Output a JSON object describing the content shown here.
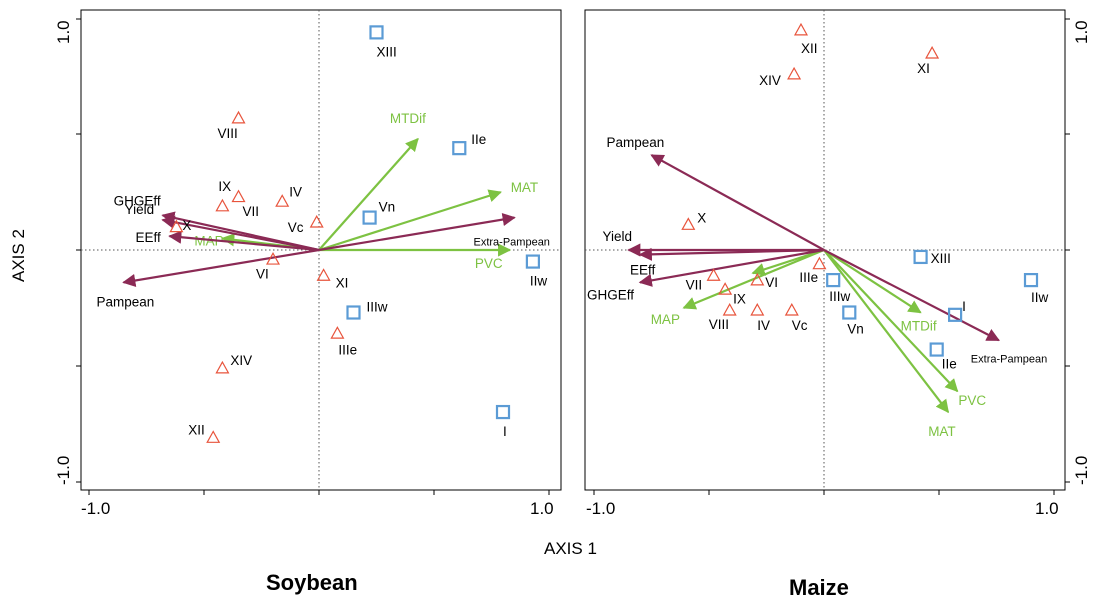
{
  "colors": {
    "env_arrow": "#7dc242",
    "prod_arrow": "#8b2a55",
    "triangle": "#e8543c",
    "square": "#5b9bd5"
  },
  "shared_axes": {
    "xlabel": "AXIS 1",
    "ylabel": "AXIS 2",
    "x_ticks": [
      "-1.0",
      "1.0"
    ],
    "y_ticks": [
      "1.0",
      "-1.0"
    ]
  },
  "chart_data": [
    {
      "type": "scatter",
      "title": "Soybean",
      "xlabel": "AXIS 1",
      "ylabel": "AXIS 2",
      "xlim": [
        -1.0,
        1.0
      ],
      "ylim": [
        -1.0,
        1.0
      ],
      "grid": false,
      "triangles": [
        {
          "label": "VIII",
          "x": -0.35,
          "y": 0.57
        },
        {
          "label": "IX",
          "x": -0.42,
          "y": 0.19
        },
        {
          "label": "VII",
          "x": -0.35,
          "y": 0.23
        },
        {
          "label": "IV",
          "x": -0.16,
          "y": 0.21
        },
        {
          "label": "Vc",
          "x": -0.01,
          "y": 0.12
        },
        {
          "label": "X",
          "x": -0.62,
          "y": 0.1
        },
        {
          "label": "VI",
          "x": -0.2,
          "y": -0.04
        },
        {
          "label": "XI",
          "x": 0.02,
          "y": -0.11
        },
        {
          "label": "IIIe",
          "x": 0.08,
          "y": -0.36
        },
        {
          "label": "XIV",
          "x": -0.42,
          "y": -0.51
        },
        {
          "label": "XII",
          "x": -0.46,
          "y": -0.81
        }
      ],
      "squares": [
        {
          "label": "XIII",
          "x": 0.25,
          "y": 0.94
        },
        {
          "label": "IIe",
          "x": 0.61,
          "y": 0.44
        },
        {
          "label": "Vn",
          "x": 0.22,
          "y": 0.14
        },
        {
          "label": "IIw",
          "x": 0.93,
          "y": -0.05
        },
        {
          "label": "IIIw",
          "x": 0.15,
          "y": -0.27
        },
        {
          "label": "I",
          "x": 0.8,
          "y": -0.7
        }
      ],
      "env_vectors": [
        {
          "label": "MTDif",
          "x": 0.43,
          "y": 0.48
        },
        {
          "label": "MAT",
          "x": 0.79,
          "y": 0.25
        },
        {
          "label": "PVC",
          "x": 0.83,
          "y": 0.0
        },
        {
          "label": "MAP",
          "x": -0.42,
          "y": 0.05
        }
      ],
      "prod_vectors": [
        {
          "label": "GHGEff",
          "x": -0.68,
          "y": 0.15
        },
        {
          "label": "Yield",
          "x": -0.68,
          "y": 0.13
        },
        {
          "label": "EEff",
          "x": -0.65,
          "y": 0.06
        },
        {
          "label": "Pampean",
          "x": -0.85,
          "y": -0.14
        },
        {
          "label": "Extra-Pampean",
          "x": 0.85,
          "y": 0.14
        }
      ]
    },
    {
      "type": "scatter",
      "title": "Maize",
      "xlabel": "AXIS 1",
      "ylabel": "AXIS 2",
      "xlim": [
        -1.0,
        1.0
      ],
      "ylim": [
        -1.0,
        1.0
      ],
      "grid": false,
      "triangles": [
        {
          "label": "XII",
          "x": -0.1,
          "y": 0.95
        },
        {
          "label": "XI",
          "x": 0.47,
          "y": 0.85
        },
        {
          "label": "XIV",
          "x": -0.13,
          "y": 0.76
        },
        {
          "label": "X",
          "x": -0.59,
          "y": 0.11
        },
        {
          "label": "IIIe",
          "x": -0.02,
          "y": -0.06
        },
        {
          "label": "VII",
          "x": -0.48,
          "y": -0.11
        },
        {
          "label": "VI",
          "x": -0.29,
          "y": -0.13
        },
        {
          "label": "IX",
          "x": -0.43,
          "y": -0.17
        },
        {
          "label": "VIII",
          "x": -0.41,
          "y": -0.26
        },
        {
          "label": "IV",
          "x": -0.29,
          "y": -0.26
        },
        {
          "label": "Vc",
          "x": -0.14,
          "y": -0.26
        }
      ],
      "squares": [
        {
          "label": "XIII",
          "x": 0.42,
          "y": -0.03
        },
        {
          "label": "IIIw",
          "x": 0.04,
          "y": -0.13
        },
        {
          "label": "Vn",
          "x": 0.11,
          "y": -0.27
        },
        {
          "label": "I",
          "x": 0.57,
          "y": -0.28
        },
        {
          "label": "IIe",
          "x": 0.49,
          "y": -0.43
        },
        {
          "label": "IIw",
          "x": 0.9,
          "y": -0.13
        }
      ],
      "env_vectors": [
        {
          "label": "MTDif",
          "x": 0.42,
          "y": -0.27
        },
        {
          "label": "PVC",
          "x": 0.58,
          "y": -0.61
        },
        {
          "label": "MAT",
          "x": 0.54,
          "y": -0.7
        },
        {
          "label": "MAP",
          "x": -0.61,
          "y": -0.25
        },
        {
          "label": "VI",
          "x": -0.31,
          "y": -0.1
        }
      ],
      "prod_vectors": [
        {
          "label": "Pampean",
          "x": -0.75,
          "y": 0.41
        },
        {
          "label": "Yield",
          "x": -0.85,
          "y": 0.0
        },
        {
          "label": "EEff",
          "x": -0.8,
          "y": -0.02
        },
        {
          "label": "GHGEff",
          "x": -0.8,
          "y": -0.14
        },
        {
          "label": "Extra-Pampean",
          "x": 0.76,
          "y": -0.39
        }
      ]
    }
  ]
}
